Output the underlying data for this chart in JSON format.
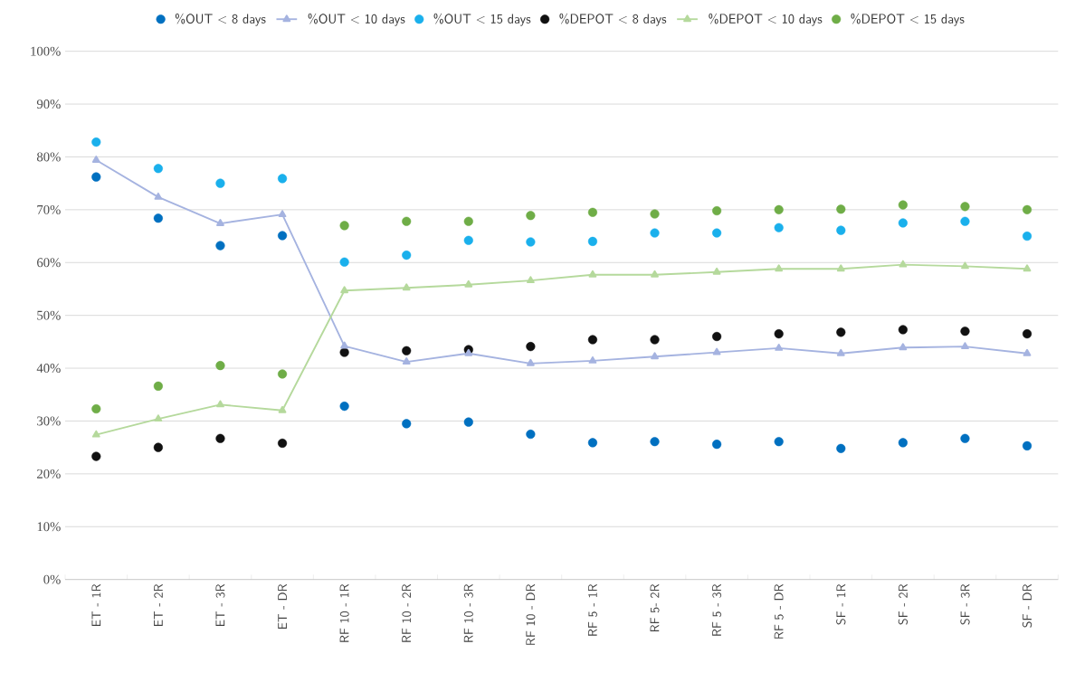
{
  "chart_data": {
    "type": "line",
    "categories": [
      "ET - 1R",
      "ET - 2R",
      "ET - 3R",
      "ET - DR",
      "RF 10 - 1R",
      "RF 10 - 2R",
      "RF 10 - 3R",
      "RF 10 - DR",
      "RF 5 - 1R",
      "RF 5- 2R",
      "RF 5 - 3R",
      "RF 5 - DR",
      "SF - 1R",
      "SF - 2R",
      "SF - 3R",
      "SF - DR"
    ],
    "series": [
      {
        "name": "%OUT < 8 days",
        "type": "scatter",
        "marker": "circle",
        "color": "#0070c0",
        "values": [
          76.2,
          68.4,
          63.2,
          65.1,
          32.8,
          29.5,
          29.8,
          27.5,
          25.9,
          26.1,
          25.6,
          26.1,
          24.8,
          25.9,
          26.7,
          25.3
        ]
      },
      {
        "name": "%OUT < 10 days",
        "marker": "triangle",
        "color": "#a5b3e0",
        "values": [
          79.4,
          72.4,
          67.4,
          69.1,
          44.2,
          41.2,
          42.8,
          40.9,
          41.4,
          42.2,
          43.0,
          43.8,
          42.8,
          43.9,
          44.1,
          42.8
        ]
      },
      {
        "name": "%OUT < 15 days",
        "type": "scatter",
        "marker": "circle",
        "color": "#1ab0ec",
        "values": [
          82.8,
          77.8,
          75.0,
          75.9,
          60.1,
          61.4,
          64.2,
          63.9,
          64.0,
          65.6,
          65.6,
          66.6,
          66.1,
          67.5,
          67.8,
          65.0
        ]
      },
      {
        "name": "%DEPOT < 8 days",
        "type": "scatter",
        "marker": "circle",
        "color": "#111111",
        "values": [
          23.3,
          25.0,
          26.7,
          25.8,
          43.0,
          43.3,
          43.5,
          44.1,
          45.4,
          45.4,
          46.0,
          46.5,
          46.8,
          47.3,
          47.0,
          46.5
        ]
      },
      {
        "name": "%DEPOT < 10 days",
        "marker": "triangle",
        "color": "#b5d99c",
        "values": [
          27.4,
          30.4,
          33.1,
          32.0,
          54.7,
          55.2,
          55.8,
          56.6,
          57.7,
          57.7,
          58.2,
          58.8,
          58.8,
          59.6,
          59.3,
          58.8
        ]
      },
      {
        "name": "%DEPOT < 15 days",
        "type": "scatter",
        "marker": "circle",
        "color": "#6fad47",
        "values": [
          32.3,
          36.6,
          40.5,
          38.9,
          67.0,
          67.8,
          67.8,
          68.9,
          69.5,
          69.2,
          69.8,
          70.0,
          70.1,
          70.9,
          70.6,
          70.0
        ]
      }
    ],
    "ylim": [
      0,
      100
    ],
    "yticks": [
      {
        "value": 0,
        "label": "0%"
      },
      {
        "value": 10,
        "label": "10%"
      },
      {
        "value": 20,
        "label": "20%"
      },
      {
        "value": 30,
        "label": "30%"
      },
      {
        "value": 40,
        "label": "40%"
      },
      {
        "value": 50,
        "label": "50%"
      },
      {
        "value": 60,
        "label": "60%"
      },
      {
        "value": 70,
        "label": "70%"
      },
      {
        "value": 80,
        "label": "80%"
      },
      {
        "value": 90,
        "label": "90%"
      },
      {
        "value": 100,
        "label": "100%"
      }
    ],
    "grid": "y",
    "legend": "top"
  }
}
